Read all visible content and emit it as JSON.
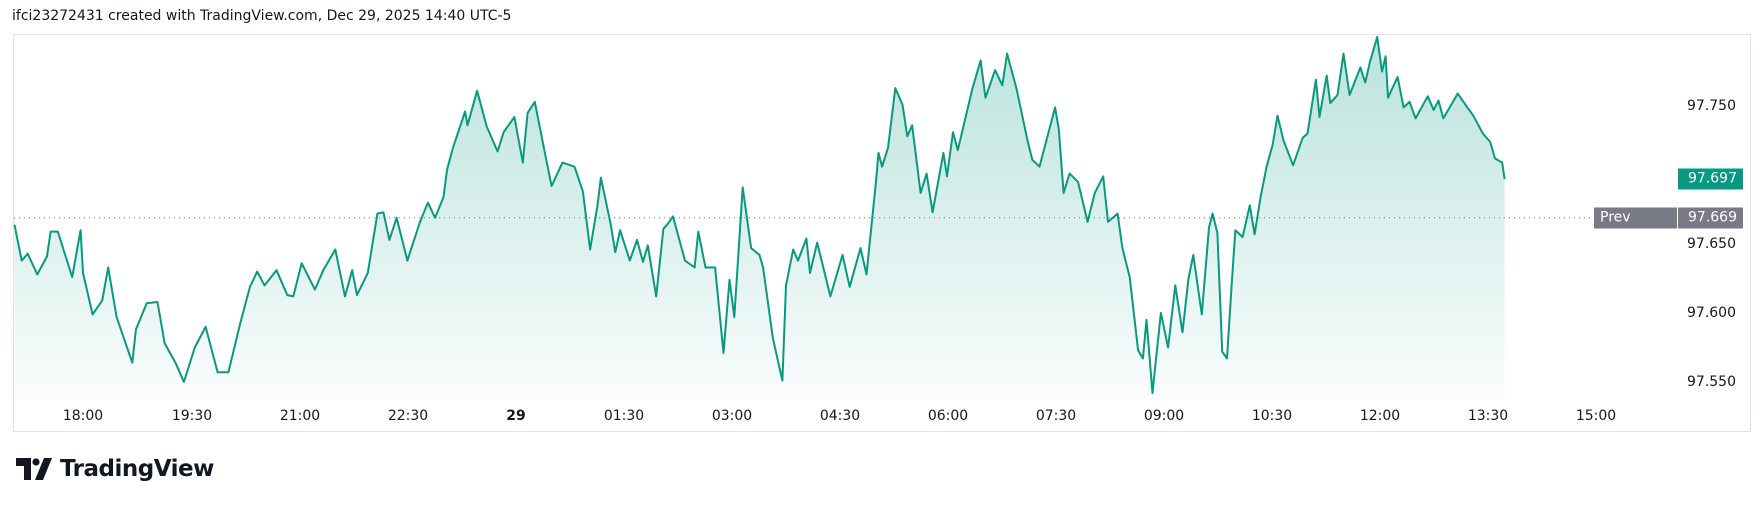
{
  "header": {
    "text": "ifci23272431 created with TradingView.com, Dec 29, 2025 14:40 UTC-5"
  },
  "logo": {
    "text": "TradingView"
  },
  "chart_data": {
    "type": "area",
    "grid": false,
    "colors": {
      "line": "#089981",
      "prev_close": "#787b86"
    },
    "ylim": [
      97.526,
      97.812
    ],
    "y_ticks": [
      "97.750",
      "97.650",
      "97.600",
      "97.550"
    ],
    "x_ticks": [
      "18:00",
      "19:30",
      "21:00",
      "22:30",
      "29",
      "01:30",
      "03:00",
      "04:30",
      "06:00",
      "07:30",
      "09:00",
      "10:30",
      "12:00",
      "13:30",
      "15:00"
    ],
    "last_price": {
      "value": "97.697"
    },
    "prev_close": {
      "label": "Prev close",
      "value": "97.669"
    },
    "series": [
      {
        "points": [
          [
            "17:03",
            97.664
          ],
          [
            "17:09",
            97.638
          ],
          [
            "17:14",
            97.643
          ],
          [
            "17:22",
            97.628
          ],
          [
            "17:30",
            97.641
          ],
          [
            "17:33",
            97.659
          ],
          [
            "17:39",
            97.659
          ],
          [
            "17:51",
            97.626
          ],
          [
            "17:58",
            97.66
          ],
          [
            "18:00",
            97.629
          ],
          [
            "18:08",
            97.599
          ],
          [
            "18:16",
            97.609
          ],
          [
            "18:21",
            97.633
          ],
          [
            "18:28",
            97.597
          ],
          [
            "18:41",
            97.564
          ],
          [
            "18:44",
            97.588
          ],
          [
            "18:53",
            97.607
          ],
          [
            "19:02",
            97.608
          ],
          [
            "19:08",
            97.578
          ],
          [
            "19:17",
            97.564
          ],
          [
            "19:24",
            97.55
          ],
          [
            "19:33",
            97.575
          ],
          [
            "19:42",
            97.59
          ],
          [
            "19:52",
            97.557
          ],
          [
            "20:01",
            97.557
          ],
          [
            "20:11",
            97.593
          ],
          [
            "20:19",
            97.619
          ],
          [
            "20:25",
            97.63
          ],
          [
            "20:31",
            97.62
          ],
          [
            "20:41",
            97.631
          ],
          [
            "20:50",
            97.613
          ],
          [
            "20:55",
            97.612
          ],
          [
            "21:02",
            97.636
          ],
          [
            "21:13",
            97.617
          ],
          [
            "21:20",
            97.631
          ],
          [
            "21:30",
            97.646
          ],
          [
            "21:38",
            97.612
          ],
          [
            "21:44",
            97.631
          ],
          [
            "21:48",
            97.613
          ],
          [
            "21:57",
            97.629
          ],
          [
            "22:05",
            97.672
          ],
          [
            "22:10",
            97.673
          ],
          [
            "22:15",
            97.653
          ],
          [
            "22:21",
            97.669
          ],
          [
            "22:30",
            97.638
          ],
          [
            "22:40",
            97.665
          ],
          [
            "22:47",
            97.68
          ],
          [
            "22:53",
            97.669
          ],
          [
            "23:00",
            97.684
          ],
          [
            "23:03",
            97.704
          ],
          [
            "23:08",
            97.72
          ],
          [
            "23:18",
            97.746
          ],
          [
            "23:20",
            97.736
          ],
          [
            "23:28",
            97.761
          ],
          [
            "23:36",
            97.735
          ],
          [
            "23:45",
            97.717
          ],
          [
            "23:50",
            97.731
          ],
          [
            "23:59",
            97.742
          ],
          [
            "00:06",
            97.709
          ],
          [
            "00:10",
            97.745
          ],
          [
            "00:16",
            97.753
          ],
          [
            "00:26",
            97.709
          ],
          [
            "00:30",
            97.692
          ],
          [
            "00:39",
            97.709
          ],
          [
            "00:49",
            97.706
          ],
          [
            "00:56",
            97.688
          ],
          [
            "01:02",
            97.646
          ],
          [
            "01:08",
            97.677
          ],
          [
            "01:11",
            97.698
          ],
          [
            "01:19",
            97.665
          ],
          [
            "01:23",
            97.644
          ],
          [
            "01:27",
            97.66
          ],
          [
            "01:35",
            97.638
          ],
          [
            "01:41",
            97.653
          ],
          [
            "01:46",
            97.637
          ],
          [
            "01:50",
            97.649
          ],
          [
            "01:57",
            97.612
          ],
          [
            "02:03",
            97.661
          ],
          [
            "02:07",
            97.665
          ],
          [
            "02:11",
            97.67
          ],
          [
            "02:21",
            97.638
          ],
          [
            "02:29",
            97.633
          ],
          [
            "02:32",
            97.659
          ],
          [
            "02:38",
            97.633
          ],
          [
            "02:46",
            97.633
          ],
          [
            "02:53",
            97.571
          ],
          [
            "02:58",
            97.624
          ],
          [
            "03:02",
            97.597
          ],
          [
            "03:09",
            97.691
          ],
          [
            "03:16",
            97.647
          ],
          [
            "03:23",
            97.642
          ],
          [
            "03:26",
            97.633
          ],
          [
            "03:34",
            97.582
          ],
          [
            "03:42",
            97.551
          ],
          [
            "03:45",
            97.62
          ],
          [
            "03:51",
            97.646
          ],
          [
            "03:55",
            97.638
          ],
          [
            "04:02",
            97.654
          ],
          [
            "04:05",
            97.629
          ],
          [
            "04:11",
            97.651
          ],
          [
            "04:22",
            97.612
          ],
          [
            "04:32",
            97.642
          ],
          [
            "04:38",
            97.619
          ],
          [
            "04:47",
            97.647
          ],
          [
            "04:52",
            97.628
          ],
          [
            "05:00",
            97.696
          ],
          [
            "05:02",
            97.716
          ],
          [
            "05:05",
            97.706
          ],
          [
            "05:10",
            97.72
          ],
          [
            "05:16",
            97.763
          ],
          [
            "05:22",
            97.751
          ],
          [
            "05:26",
            97.728
          ],
          [
            "05:30",
            97.736
          ],
          [
            "05:37",
            97.687
          ],
          [
            "05:42",
            97.701
          ],
          [
            "05:47",
            97.673
          ],
          [
            "05:56",
            97.716
          ],
          [
            "05:59",
            97.699
          ],
          [
            "06:04",
            97.731
          ],
          [
            "06:08",
            97.718
          ],
          [
            "06:20",
            97.762
          ],
          [
            "06:27",
            97.783
          ],
          [
            "06:31",
            97.756
          ],
          [
            "06:39",
            97.776
          ],
          [
            "06:45",
            97.765
          ],
          [
            "06:49",
            97.788
          ],
          [
            "06:57",
            97.762
          ],
          [
            "07:06",
            97.725
          ],
          [
            "07:10",
            97.711
          ],
          [
            "07:16",
            97.706
          ],
          [
            "07:29",
            97.749
          ],
          [
            "07:32",
            97.733
          ],
          [
            "07:36",
            97.687
          ],
          [
            "07:41",
            97.701
          ],
          [
            "07:48",
            97.695
          ],
          [
            "07:56",
            97.666
          ],
          [
            "08:02",
            97.687
          ],
          [
            "08:09",
            97.699
          ],
          [
            "08:13",
            97.666
          ],
          [
            "08:21",
            97.672
          ],
          [
            "08:25",
            97.647
          ],
          [
            "08:31",
            97.626
          ],
          [
            "08:38",
            97.573
          ],
          [
            "08:42",
            97.567
          ],
          [
            "08:45",
            97.595
          ],
          [
            "08:50",
            97.542
          ],
          [
            "08:52",
            97.559
          ],
          [
            "08:57",
            97.6
          ],
          [
            "09:03",
            97.575
          ],
          [
            "09:09",
            97.62
          ],
          [
            "09:15",
            97.586
          ],
          [
            "09:20",
            97.625
          ],
          [
            "09:24",
            97.642
          ],
          [
            "09:31",
            97.599
          ],
          [
            "09:37",
            97.662
          ],
          [
            "09:40",
            97.672
          ],
          [
            "09:44",
            97.658
          ],
          [
            "09:48",
            97.572
          ],
          [
            "09:52",
            97.567
          ],
          [
            "09:56",
            97.622
          ],
          [
            "09:59",
            97.66
          ],
          [
            "10:05",
            97.655
          ],
          [
            "10:11",
            97.678
          ],
          [
            "10:15",
            97.657
          ],
          [
            "10:20",
            97.684
          ],
          [
            "10:25",
            97.706
          ],
          [
            "10:30",
            97.722
          ],
          [
            "10:34",
            97.743
          ],
          [
            "10:39",
            97.725
          ],
          [
            "10:47",
            97.707
          ],
          [
            "10:55",
            97.727
          ],
          [
            "10:59",
            97.73
          ],
          [
            "11:06",
            97.769
          ],
          [
            "11:09",
            97.742
          ],
          [
            "11:15",
            97.772
          ],
          [
            "11:18",
            97.752
          ],
          [
            "11:24",
            97.758
          ],
          [
            "11:29",
            97.788
          ],
          [
            "11:34",
            97.758
          ],
          [
            "11:43",
            97.778
          ],
          [
            "11:47",
            97.767
          ],
          [
            "11:51",
            97.782
          ],
          [
            "11:57",
            97.8
          ],
          [
            "12:01",
            97.775
          ],
          [
            "12:04",
            97.786
          ],
          [
            "12:06",
            97.756
          ],
          [
            "12:14",
            97.771
          ],
          [
            "12:19",
            97.749
          ],
          [
            "12:24",
            97.753
          ],
          [
            "12:29",
            97.741
          ],
          [
            "12:39",
            97.757
          ],
          [
            "12:44",
            97.747
          ],
          [
            "12:48",
            97.754
          ],
          [
            "12:52",
            97.741
          ],
          [
            "13:04",
            97.759
          ],
          [
            "13:08",
            97.754
          ],
          [
            "13:17",
            97.743
          ],
          [
            "13:25",
            97.73
          ],
          [
            "13:31",
            97.724
          ],
          [
            "13:35",
            97.712
          ],
          [
            "13:41",
            97.709
          ],
          [
            "13:43",
            97.697
          ]
        ]
      }
    ]
  }
}
